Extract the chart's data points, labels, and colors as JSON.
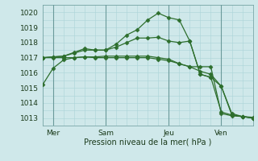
{
  "background_color": "#cfe8ea",
  "grid_color": "#aad4d8",
  "line_color": "#2d6e2d",
  "xlabel": "Pression niveau de la mer( hPa )",
  "ylim": [
    1012.5,
    1020.5
  ],
  "yticks": [
    1013,
    1014,
    1015,
    1016,
    1017,
    1018,
    1019,
    1020
  ],
  "xlim": [
    0,
    10
  ],
  "xtick_labels": [
    "Mer",
    "Sam",
    "Jeu",
    "Ven"
  ],
  "xtick_positions": [
    0.5,
    3,
    6,
    8.5
  ],
  "vline_positions": [
    0.5,
    3,
    6,
    8.5
  ],
  "series": [
    {
      "x": [
        0,
        0.5,
        1,
        1.5,
        2,
        2.5,
        3,
        3.5,
        4,
        4.5,
        5,
        5.5,
        6,
        6.5,
        7,
        7.5,
        8,
        8.5,
        9,
        9.5,
        10
      ],
      "y": [
        1017.0,
        1017.0,
        1017.0,
        1017.0,
        1017.05,
        1017.0,
        1017.0,
        1017.0,
        1017.0,
        1017.0,
        1017.0,
        1016.9,
        1016.8,
        1016.6,
        1016.4,
        1016.4,
        1016.4,
        1013.3,
        1013.15,
        1013.1,
        1013.05
      ],
      "marker": "D",
      "markersize": 2.5
    },
    {
      "x": [
        0,
        0.5,
        1,
        1.5,
        2,
        2.5,
        3,
        3.5,
        4,
        4.5,
        5,
        5.5,
        6,
        6.5,
        7,
        7.5,
        8,
        8.5,
        9,
        9.5,
        10
      ],
      "y": [
        1017.0,
        1017.05,
        1017.1,
        1017.3,
        1017.5,
        1017.5,
        1017.5,
        1017.7,
        1018.0,
        1018.3,
        1018.3,
        1018.35,
        1018.1,
        1018.0,
        1018.1,
        1015.9,
        1015.7,
        1015.1,
        1013.3,
        1013.1,
        1013.0
      ],
      "marker": "D",
      "markersize": 2.5
    },
    {
      "x": [
        0,
        0.5,
        1,
        1.5,
        2,
        2.5,
        3,
        3.5,
        4,
        4.5,
        5,
        5.5,
        6,
        6.5,
        7,
        7.5,
        8,
        8.5,
        9,
        9.5,
        10
      ],
      "y": [
        1017.0,
        1017.05,
        1017.1,
        1017.35,
        1017.6,
        1017.5,
        1017.5,
        1017.9,
        1018.5,
        1018.85,
        1019.5,
        1019.95,
        1019.65,
        1019.5,
        1018.1,
        1015.9,
        1015.7,
        1013.4,
        1013.2,
        1013.1,
        1013.0
      ],
      "marker": "D",
      "markersize": 2.5
    },
    {
      "x": [
        0,
        0.5,
        1,
        1.5,
        2,
        2.5,
        3,
        3.5,
        4,
        4.5,
        5,
        5.5,
        6,
        6.5,
        7,
        7.5,
        8,
        8.5,
        9,
        9.5,
        10
      ],
      "y": [
        1015.2,
        1016.3,
        1016.85,
        1017.0,
        1017.05,
        1017.05,
        1017.1,
        1017.1,
        1017.1,
        1017.1,
        1017.1,
        1017.0,
        1016.9,
        1016.6,
        1016.4,
        1016.1,
        1015.9,
        1015.1,
        1013.2,
        1013.1,
        1013.0
      ],
      "marker": "D",
      "markersize": 2.5
    }
  ]
}
